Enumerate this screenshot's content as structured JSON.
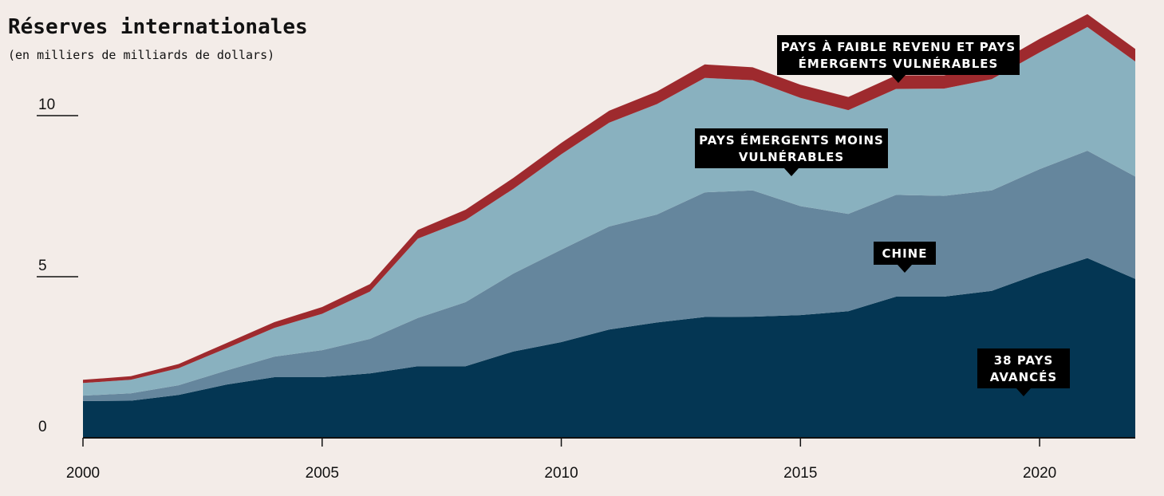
{
  "title": "Réserves internationales",
  "subtitle": "(en milliers de milliards de dollars)",
  "colors": {
    "background": "#f3ece8",
    "advanced": "#043653",
    "china": "#65869d",
    "emerging_less_vulnerable": "#89b1bf",
    "low_income_vulnerable": "#9e2a2e",
    "label_bg": "#000000"
  },
  "chart_data": {
    "type": "area",
    "stacked": true,
    "x": [
      2000,
      2001,
      2002,
      2003,
      2004,
      2005,
      2006,
      2007,
      2008,
      2009,
      2010,
      2011,
      2012,
      2013,
      2014,
      2015,
      2016,
      2017,
      2018,
      2019,
      2020,
      2021,
      2022
    ],
    "xticks": [
      2000,
      2005,
      2010,
      2015,
      2020
    ],
    "yticks": [
      0,
      5,
      10
    ],
    "ylim": [
      0,
      13
    ],
    "grid": false,
    "series": [
      {
        "name": "38 PAYS AVANCÉS",
        "color_key": "advanced",
        "values": [
          1.14,
          1.15,
          1.33,
          1.65,
          1.88,
          1.88,
          2.0,
          2.22,
          2.22,
          2.68,
          2.97,
          3.36,
          3.58,
          3.75,
          3.76,
          3.81,
          3.93,
          4.38,
          4.38,
          4.56,
          5.1,
          5.58,
          4.93
        ]
      },
      {
        "name": "CHINE",
        "color_key": "china",
        "values": [
          0.17,
          0.23,
          0.3,
          0.44,
          0.64,
          0.84,
          1.07,
          1.5,
          1.99,
          2.42,
          2.87,
          3.2,
          3.35,
          3.87,
          3.92,
          3.38,
          3.02,
          3.16,
          3.13,
          3.12,
          3.24,
          3.33,
          3.18
        ]
      },
      {
        "name": "PAYS ÉMERGENTS MOINS VULNÉRABLES",
        "color_key": "emerging_less_vulnerable",
        "values": [
          0.39,
          0.42,
          0.53,
          0.69,
          0.89,
          1.13,
          1.47,
          2.46,
          2.55,
          2.63,
          2.96,
          3.22,
          3.43,
          3.55,
          3.42,
          3.36,
          3.22,
          3.29,
          3.33,
          3.45,
          3.62,
          3.84,
          3.57
        ]
      },
      {
        "name": "PAYS À FAIBLE REVENU ET PAYS ÉMERGENTS VULNÉRABLES",
        "color_key": "low_income_vulnerable",
        "values": [
          0.1,
          0.11,
          0.13,
          0.16,
          0.18,
          0.21,
          0.23,
          0.27,
          0.32,
          0.34,
          0.35,
          0.37,
          0.39,
          0.42,
          0.4,
          0.41,
          0.41,
          0.42,
          0.41,
          0.4,
          0.42,
          0.4,
          0.39
        ]
      }
    ],
    "annotations": [
      {
        "lines": [
          "PAYS À FAIBLE REVENU ET PAYS",
          "ÉMERGENTS VULNÉRABLES"
        ],
        "series": 3
      },
      {
        "lines": [
          "PAYS ÉMERGENTS MOINS",
          "VULNÉRABLES"
        ],
        "series": 2
      },
      {
        "lines": [
          "CHINE"
        ],
        "series": 1
      },
      {
        "lines": [
          "38 PAYS",
          "AVANCÉS"
        ],
        "series": 0
      }
    ]
  }
}
